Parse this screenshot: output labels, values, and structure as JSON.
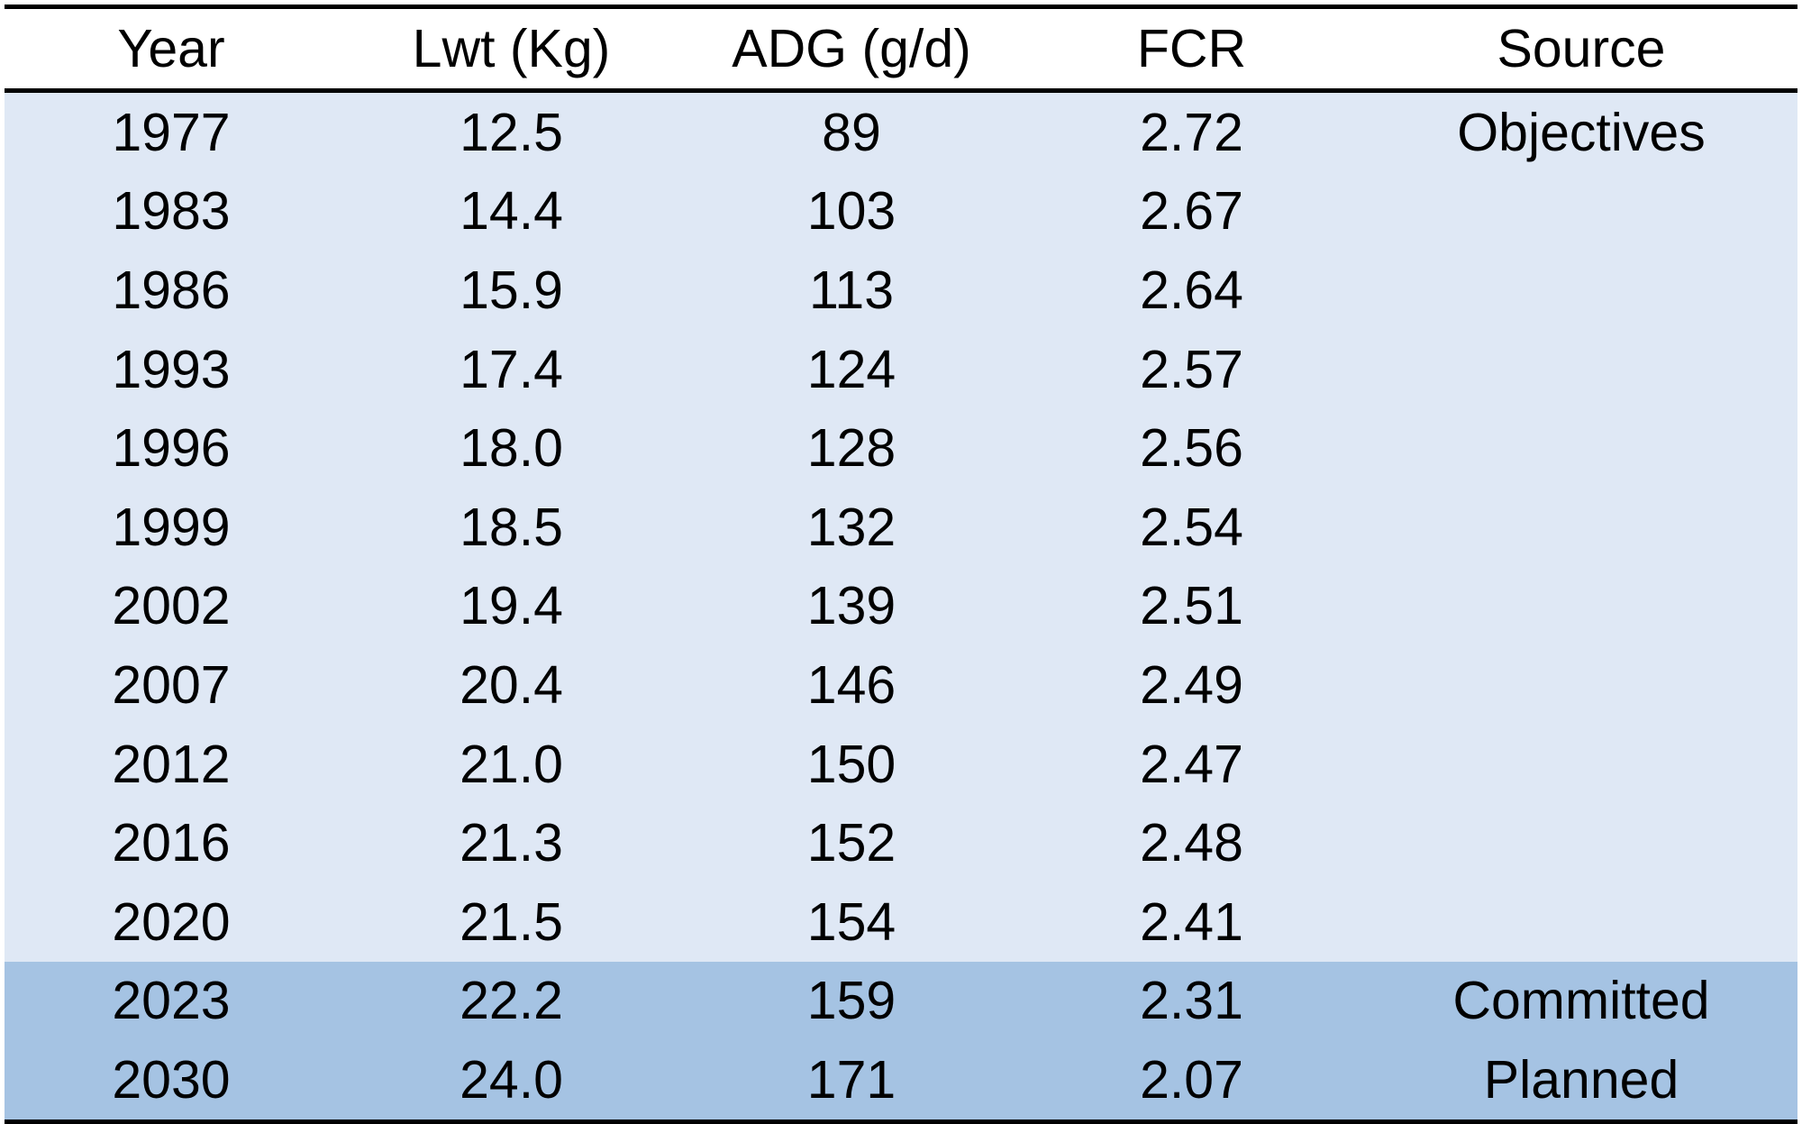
{
  "table": {
    "headers": [
      "Year",
      "Lwt (Kg)",
      "ADG (g/d)",
      "FCR",
      "Source"
    ],
    "rows": [
      {
        "year": "1977",
        "lwt": "12.5",
        "adg": "89",
        "fcr": "2.72",
        "source": "Objectives"
      },
      {
        "year": "1983",
        "lwt": "14.4",
        "adg": "103",
        "fcr": "2.67",
        "source": ""
      },
      {
        "year": "1986",
        "lwt": "15.9",
        "adg": "113",
        "fcr": "2.64",
        "source": ""
      },
      {
        "year": "1993",
        "lwt": "17.4",
        "adg": "124",
        "fcr": "2.57",
        "source": ""
      },
      {
        "year": "1996",
        "lwt": "18.0",
        "adg": "128",
        "fcr": "2.56",
        "source": ""
      },
      {
        "year": "1999",
        "lwt": "18.5",
        "adg": "132",
        "fcr": "2.54",
        "source": ""
      },
      {
        "year": "2002",
        "lwt": "19.4",
        "adg": "139",
        "fcr": "2.51",
        "source": ""
      },
      {
        "year": "2007",
        "lwt": "20.4",
        "adg": "146",
        "fcr": "2.49",
        "source": ""
      },
      {
        "year": "2012",
        "lwt": "21.0",
        "adg": "150",
        "fcr": "2.47",
        "source": ""
      },
      {
        "year": "2016",
        "lwt": "21.3",
        "adg": "152",
        "fcr": "2.48",
        "source": ""
      },
      {
        "year": "2020",
        "lwt": "21.5",
        "adg": "154",
        "fcr": "2.41",
        "source": ""
      },
      {
        "year": "2023",
        "lwt": "22.2",
        "adg": "159",
        "fcr": "2.31",
        "source": "Committed"
      },
      {
        "year": "2030",
        "lwt": "24.0",
        "adg": "171",
        "fcr": "2.07",
        "source": "Planned"
      }
    ]
  },
  "colors": {
    "historical_band": "#dfe8f5",
    "future_band": "#a5c3e3",
    "rule": "#000000"
  }
}
